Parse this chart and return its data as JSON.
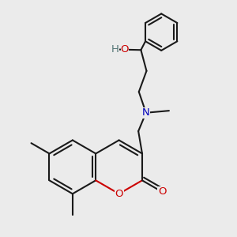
{
  "background_color": "#ebebeb",
  "bond_color": "#1a1a1a",
  "oxygen_color": "#cc0000",
  "nitrogen_color": "#0000bb",
  "oh_h_color": "#557777",
  "oh_o_color": "#cc0000",
  "figsize": [
    3.0,
    3.0
  ],
  "dpi": 100,
  "lw": 1.5,
  "fs": 9.5,
  "xlim": [
    0.02,
    0.88
  ],
  "ylim": [
    0.05,
    0.97
  ]
}
